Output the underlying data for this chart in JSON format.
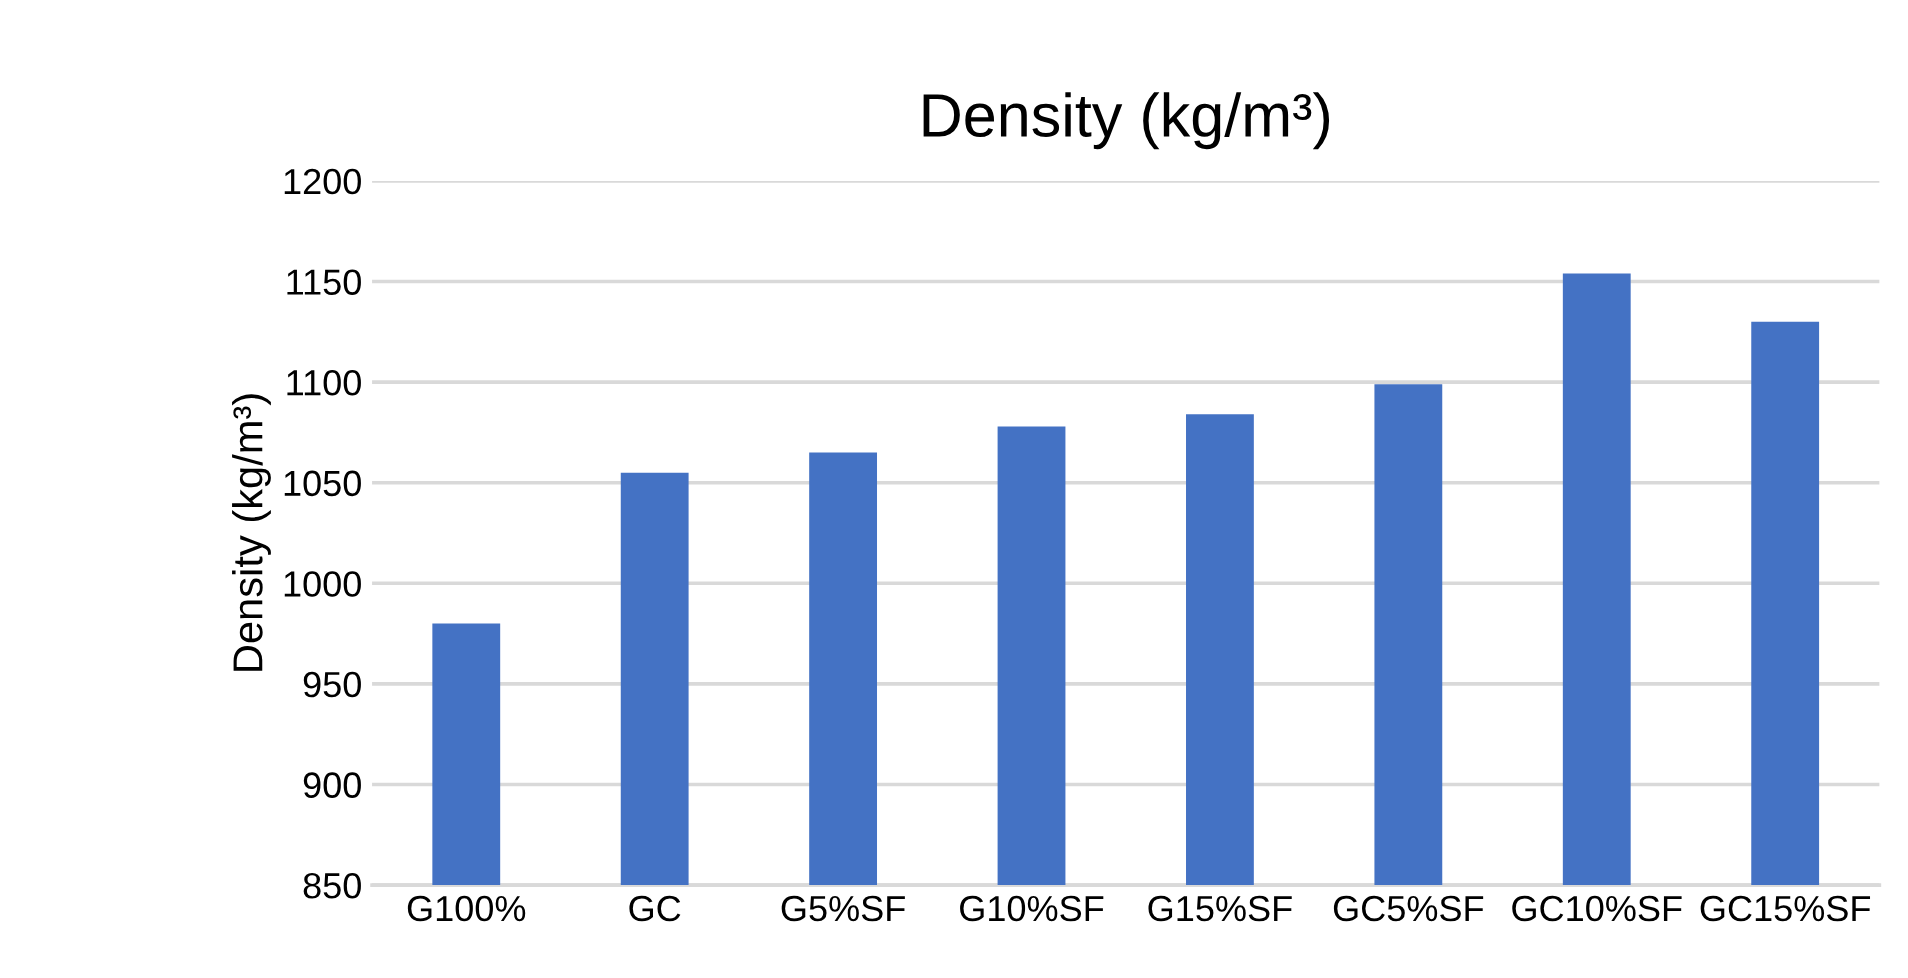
{
  "chart_data": {
    "type": "bar",
    "title": "Density (kg/m³)",
    "ylabel": "Density (kg/m³)",
    "categories": [
      "G100%",
      "GC",
      "G5%SF",
      "G10%SF",
      "G15%SF",
      "GC5%SF",
      "GC10%SF",
      "GC15%SF"
    ],
    "values": [
      980,
      1055,
      1065,
      1078,
      1084,
      1099,
      1154,
      1130
    ],
    "color": "#4472c4",
    "ylim": [
      850,
      1200
    ],
    "yticks": [
      850,
      900,
      950,
      1000,
      1050,
      1100,
      1150,
      1200
    ],
    "grid": "y",
    "legend": false
  }
}
